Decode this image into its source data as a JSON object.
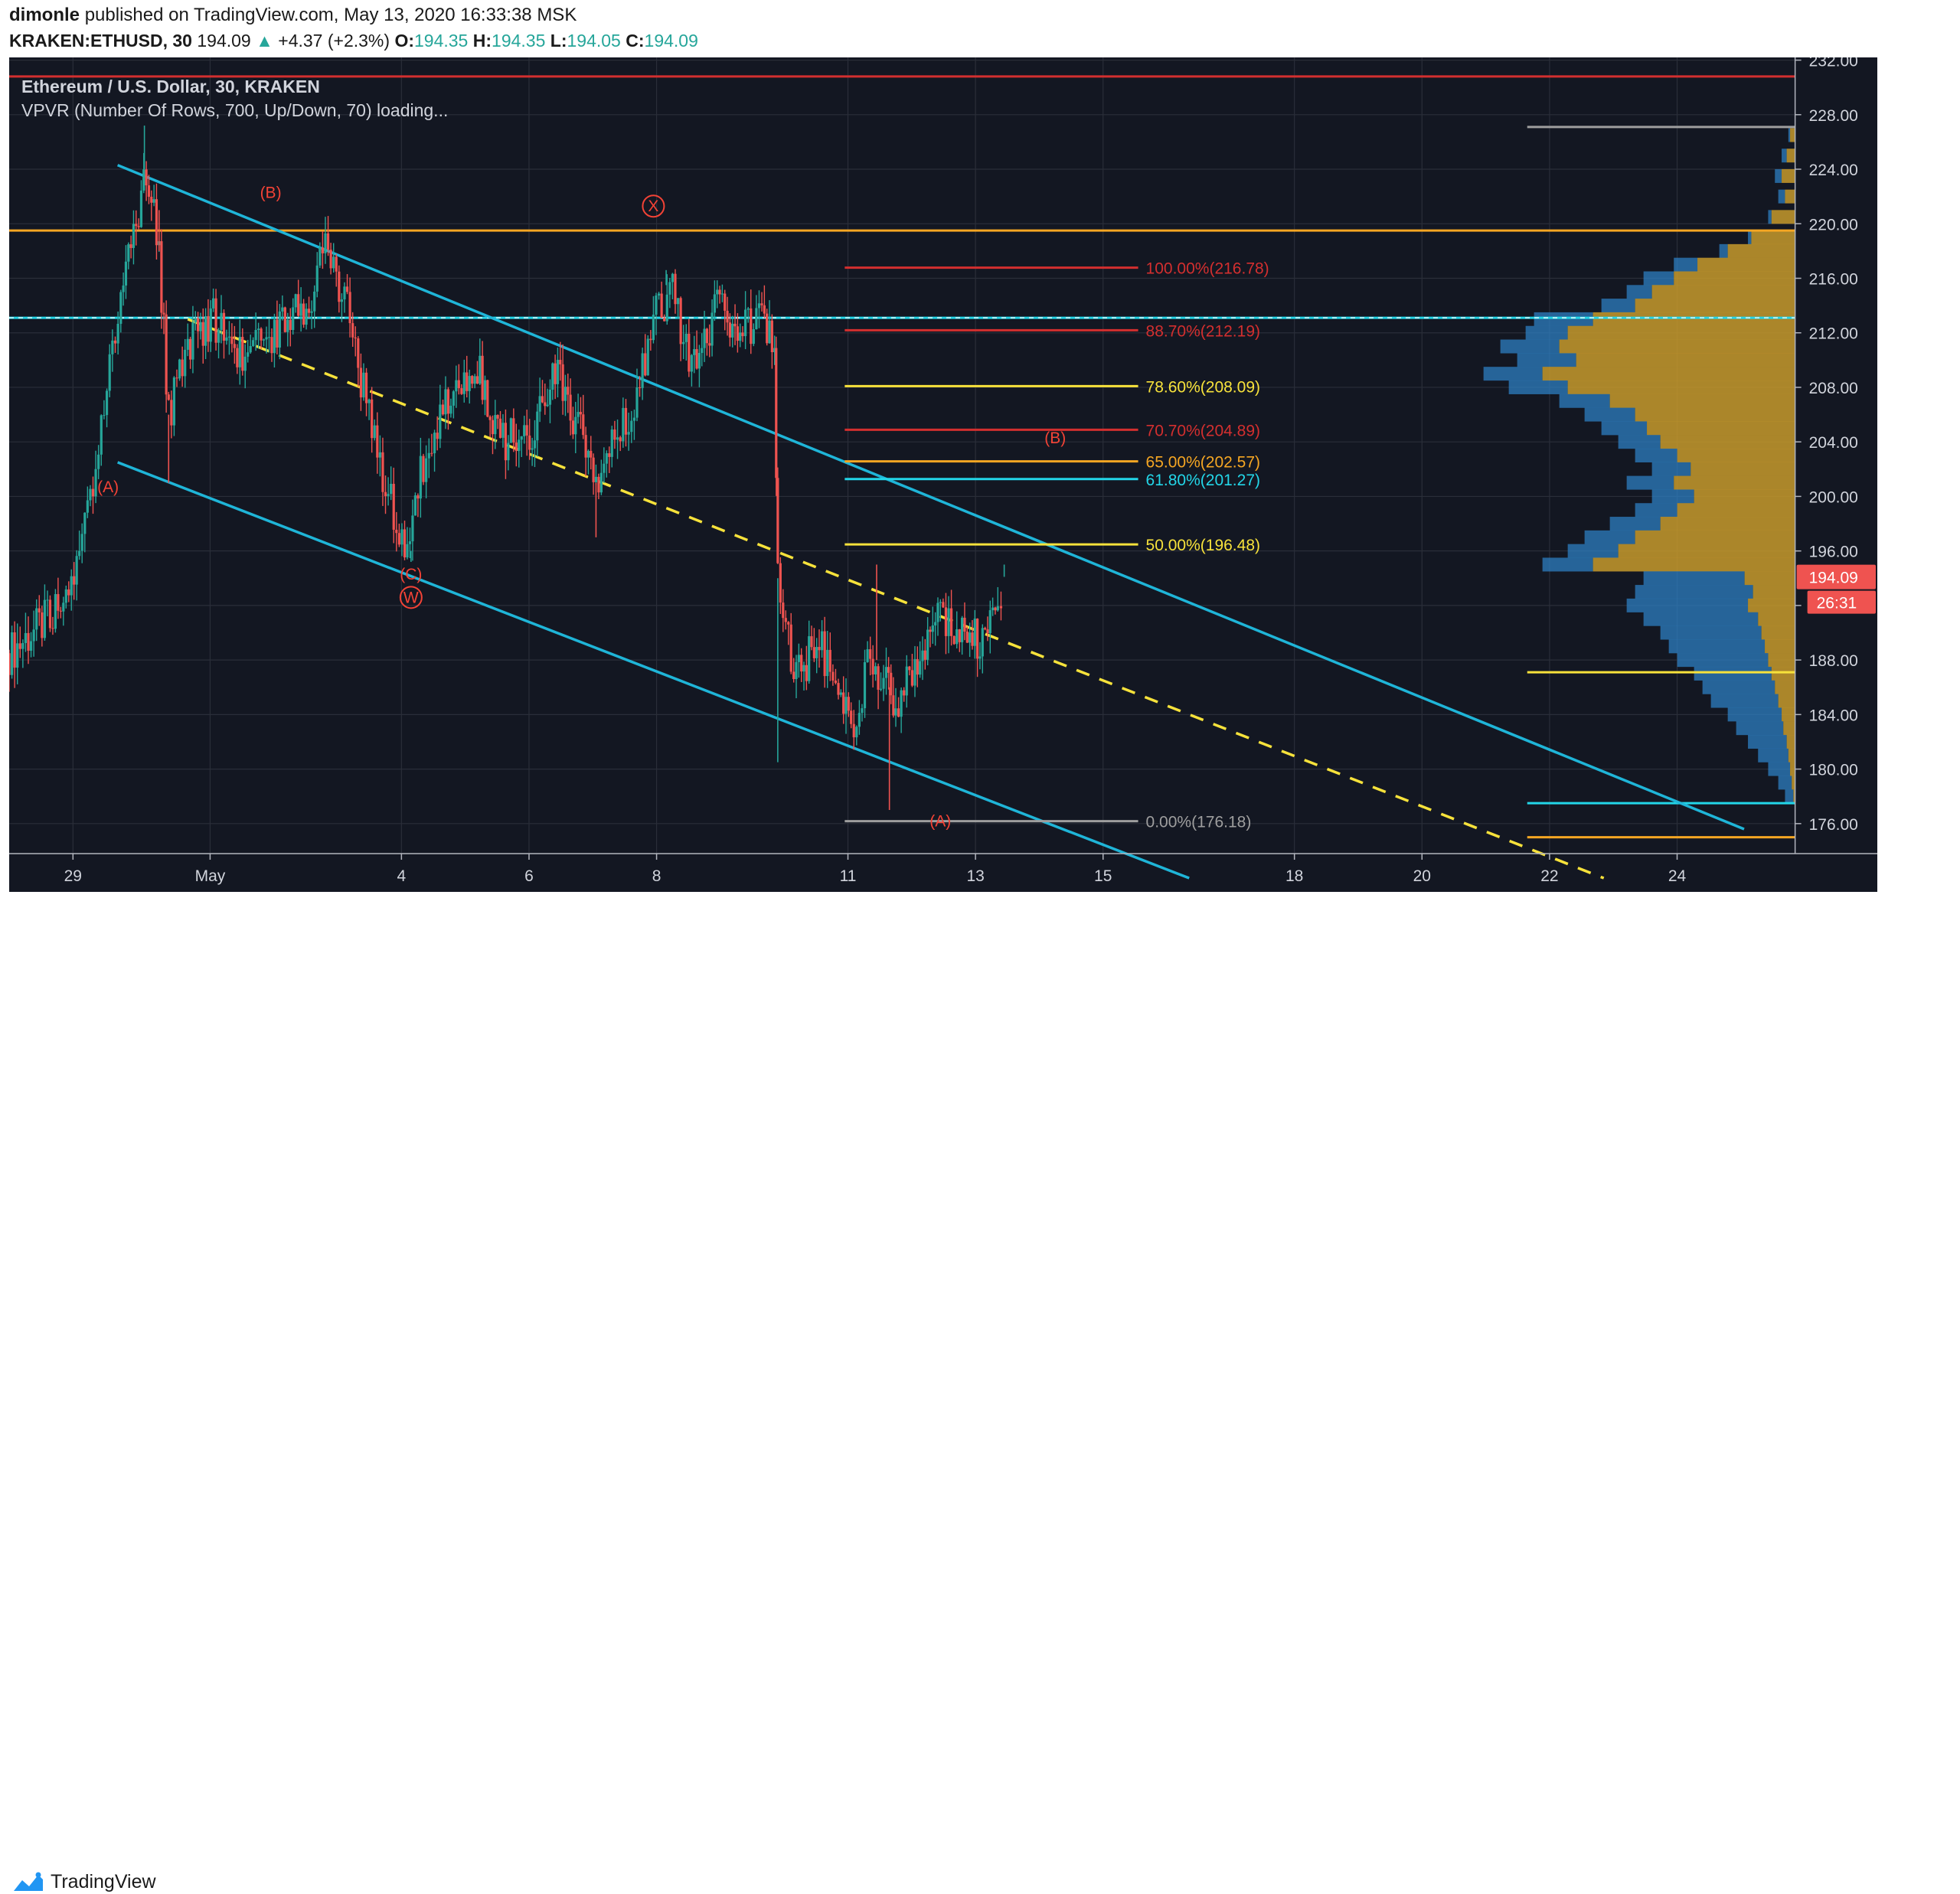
{
  "header": {
    "author": "dimonle",
    "published_text": "published on TradingView.com, May 13, 2020 16:33:38 MSK",
    "symbol": "KRAKEN:ETHUSD, 30",
    "last": "194.09",
    "change": "+4.37 (+2.3%)",
    "o_label": "O:",
    "o_value": "194.35",
    "h_label": "H:",
    "h_value": "194.35",
    "l_label": "L:",
    "l_value": "194.05",
    "c_label": "C:",
    "c_value": "194.09"
  },
  "legend": {
    "title": "Ethereum / U.S. Dollar, 30, KRAKEN",
    "indicator": "VPVR (Number Of Rows, 700, Up/Down, 70) loading..."
  },
  "footer": {
    "brand": "TradingView"
  },
  "colors": {
    "background": "#131722",
    "grid": "#2a2e39",
    "up": "#26a69a",
    "down": "#ef5350",
    "channel": "#1fb5d8",
    "midline": "#f7e23b",
    "fib_red": "#d32f2f",
    "fib_yellow": "#f7e23b",
    "fib_orange": "#f5a623",
    "fib_cyan": "#23d6e8",
    "fib_gray": "#9e9e9e",
    "vpvr_up": "#c79a2b",
    "vpvr_down": "#2e7fc1",
    "wave_label": "#f44336",
    "price_tag": "#ef5350"
  },
  "chart_data": {
    "type": "line",
    "title": "Ethereum / U.S. Dollar, 30, KRAKEN",
    "x_axis": {
      "ticks": [
        "29",
        "May",
        "4",
        "6",
        "8",
        "11",
        "13",
        "15",
        "18",
        "20",
        "22",
        "24"
      ],
      "range_days": [
        -2.0,
        26.0
      ]
    },
    "y_axis": {
      "ticks": [
        "232.00",
        "228.00",
        "224.00",
        "220.00",
        "216.00",
        "212.00",
        "208.00",
        "204.00",
        "200.00",
        "196.00",
        "192.00",
        "188.00",
        "184.00",
        "180.00",
        "176.00"
      ],
      "ylim": [
        173.8,
        232.2
      ],
      "side": "right"
    },
    "price_path": [
      [
        -2.0,
        188.5
      ],
      [
        -1.4,
        191.0
      ],
      [
        -0.9,
        195.0
      ],
      [
        -0.6,
        204.0
      ],
      [
        -0.25,
        214.0
      ],
      [
        0.15,
        224.0
      ],
      [
        0.35,
        218.0
      ],
      [
        0.5,
        206.0
      ],
      [
        0.8,
        211.0
      ],
      [
        1.2,
        213.0
      ],
      [
        1.7,
        210.0
      ],
      [
        2.2,
        212.0
      ],
      [
        2.7,
        214.5
      ],
      [
        3.0,
        219.0
      ],
      [
        3.3,
        213.5
      ],
      [
        3.6,
        207.0
      ],
      [
        3.9,
        201.0
      ],
      [
        4.2,
        196.0
      ],
      [
        4.45,
        202.0
      ],
      [
        4.8,
        206.0
      ],
      [
        5.3,
        210.0
      ],
      [
        5.7,
        204.0
      ],
      [
        6.2,
        205.0
      ],
      [
        6.6,
        209.0
      ],
      [
        7.0,
        204.0
      ],
      [
        7.2,
        201.0
      ],
      [
        7.45,
        203.5
      ],
      [
        7.8,
        207.0
      ],
      [
        8.1,
        213.0
      ],
      [
        8.4,
        215.5
      ],
      [
        8.7,
        209.0
      ],
      [
        9.1,
        214.0
      ],
      [
        9.5,
        212.0
      ],
      [
        9.8,
        213.5
      ],
      [
        10.0,
        210.0
      ],
      [
        10.05,
        194.0
      ],
      [
        10.3,
        187.0
      ],
      [
        10.7,
        189.0
      ],
      [
        11.0,
        186.0
      ],
      [
        11.2,
        183.0
      ],
      [
        11.5,
        188.0
      ],
      [
        11.75,
        186.0
      ],
      [
        11.9,
        184.0
      ],
      [
        12.2,
        188.0
      ],
      [
        12.6,
        191.0
      ],
      [
        12.9,
        190.0
      ],
      [
        13.3,
        189.5
      ],
      [
        13.5,
        192.0
      ],
      [
        13.6,
        194.1
      ]
    ],
    "candle_highs": [
      [
        0.12,
        227.2
      ],
      [
        0.35,
        221.0
      ],
      [
        8.3,
        216.6
      ],
      [
        11.6,
        195.0
      ],
      [
        13.6,
        195.0
      ]
    ],
    "candle_lows": [
      [
        0.5,
        201.0
      ],
      [
        4.3,
        195.2
      ],
      [
        7.2,
        197.0
      ],
      [
        10.05,
        180.5
      ],
      [
        11.8,
        177.0
      ]
    ],
    "horizontal_lines": [
      {
        "price": 230.8,
        "color": "red"
      },
      {
        "price": 219.5,
        "color": "orange"
      },
      {
        "price": 213.1,
        "color": "cyan"
      }
    ],
    "channel_upper": [
      [
        -0.3,
        224.3
      ],
      [
        25.2,
        175.6
      ]
    ],
    "channel_lower": [
      [
        -0.3,
        202.5
      ],
      [
        16.5,
        172.0
      ]
    ],
    "channel_mid": [
      [
        0.8,
        213.0
      ],
      [
        23.0,
        172.0
      ]
    ],
    "fib_levels": [
      {
        "label": "100.00%(216.78)",
        "price": 216.78,
        "color": "red"
      },
      {
        "label": "88.70%(212.19)",
        "price": 212.19,
        "color": "red"
      },
      {
        "label": "78.60%(208.09)",
        "price": 208.09,
        "color": "yellow"
      },
      {
        "label": "70.70%(204.89)",
        "price": 204.89,
        "color": "red"
      },
      {
        "label": "65.00%(202.57)",
        "price": 202.57,
        "color": "orange"
      },
      {
        "label": "61.80%(201.27)",
        "price": 201.27,
        "color": "cyan"
      },
      {
        "label": "50.00%(196.48)",
        "price": 196.48,
        "color": "yellow"
      },
      {
        "label": "0.00%(176.18)",
        "price": 176.18,
        "color": "gray"
      }
    ],
    "fib_x_range_days": [
      11.1,
      15.7
    ],
    "wave_labels": [
      {
        "text": "(B)",
        "day": 2.1,
        "price": 221.9
      },
      {
        "text": "X",
        "day": 8.1,
        "price": 220.9,
        "circled": true
      },
      {
        "text": "(A)",
        "day": -0.45,
        "price": 200.3
      },
      {
        "text": "(C)",
        "day": 4.3,
        "price": 193.9
      },
      {
        "text": "W",
        "day": 4.3,
        "price": 192.2,
        "circled": true
      },
      {
        "text": "(B)",
        "day": 14.4,
        "price": 203.9
      },
      {
        "text": "(A)",
        "day": 12.6,
        "price": 175.8
      }
    ],
    "right_marker_lines": [
      {
        "price": 227.1,
        "color": "gray"
      },
      {
        "price": 187.1,
        "color": "yellow"
      },
      {
        "price": 177.5,
        "color": "cyan"
      },
      {
        "price": 175.0,
        "color": "orange"
      }
    ],
    "vpvr": {
      "rows": [
        [
          226.5,
          3,
          4
        ],
        [
          225.0,
          5,
          8
        ],
        [
          223.5,
          8,
          12
        ],
        [
          222.0,
          6,
          10
        ],
        [
          220.5,
          14,
          16
        ],
        [
          219.0,
          26,
          28
        ],
        [
          218.0,
          40,
          45
        ],
        [
          217.0,
          58,
          72
        ],
        [
          216.0,
          72,
          90
        ],
        [
          215.0,
          85,
          100
        ],
        [
          214.0,
          95,
          115
        ],
        [
          213.0,
          120,
          155
        ],
        [
          212.0,
          135,
          160
        ],
        [
          211.0,
          140,
          175
        ],
        [
          210.0,
          130,
          165
        ],
        [
          209.0,
          150,
          185
        ],
        [
          208.0,
          135,
          170
        ],
        [
          207.0,
          110,
          140
        ],
        [
          206.0,
          95,
          125
        ],
        [
          205.0,
          88,
          115
        ],
        [
          204.0,
          80,
          105
        ],
        [
          203.0,
          70,
          95
        ],
        [
          202.0,
          62,
          85
        ],
        [
          201.0,
          72,
          100
        ],
        [
          200.0,
          60,
          85
        ],
        [
          199.0,
          70,
          95
        ],
        [
          198.0,
          80,
          110
        ],
        [
          197.0,
          95,
          125
        ],
        [
          196.0,
          105,
          135
        ],
        [
          195.0,
          120,
          150
        ],
        [
          194.0,
          30,
          90
        ],
        [
          193.0,
          25,
          95
        ],
        [
          192.0,
          28,
          100
        ],
        [
          191.0,
          22,
          90
        ],
        [
          190.0,
          20,
          80
        ],
        [
          189.0,
          18,
          75
        ],
        [
          188.0,
          16,
          70
        ],
        [
          187.0,
          14,
          60
        ],
        [
          186.0,
          12,
          55
        ],
        [
          185.0,
          10,
          50
        ],
        [
          184.0,
          8,
          40
        ],
        [
          183.0,
          7,
          35
        ],
        [
          182.0,
          5,
          28
        ],
        [
          181.0,
          4,
          22
        ],
        [
          180.0,
          3,
          16
        ],
        [
          179.0,
          2,
          10
        ],
        [
          178.0,
          1,
          6
        ]
      ]
    },
    "last_price": "194.09",
    "countdown": "26:31"
  }
}
